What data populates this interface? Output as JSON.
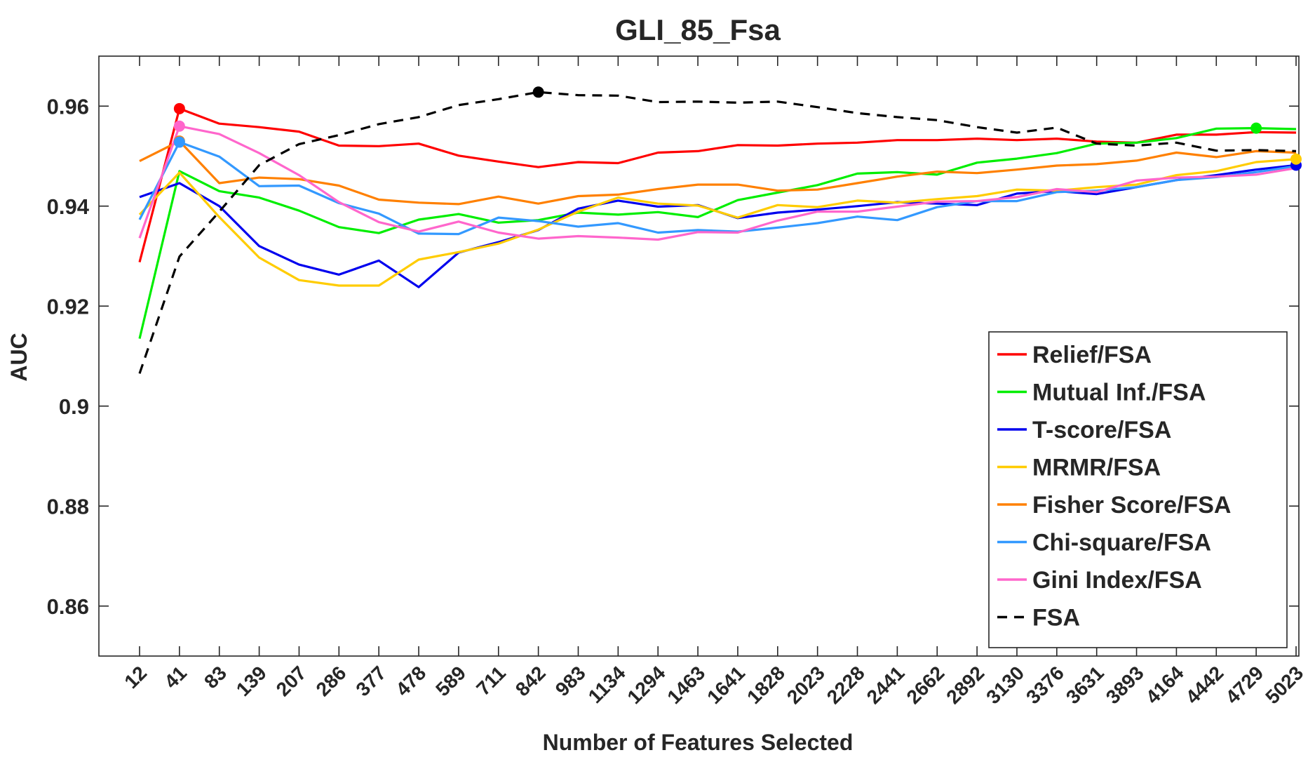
{
  "chart_data": {
    "type": "line",
    "title": "GLI_85_Fsa",
    "xlabel": "Number of Features Selected",
    "ylabel": "AUC",
    "ylim": [
      0.85,
      0.97
    ],
    "yticks": [
      0.86,
      0.88,
      0.9,
      0.92,
      0.94,
      0.96
    ],
    "ytick_labels": [
      "0.86",
      "0.88",
      "0.9",
      "0.92",
      "0.94",
      "0.96"
    ],
    "categories": [
      "12",
      "41",
      "83",
      "139",
      "207",
      "286",
      "377",
      "478",
      "589",
      "711",
      "842",
      "983",
      "1134",
      "1294",
      "1463",
      "1641",
      "1828",
      "2023",
      "2228",
      "2441",
      "2662",
      "2892",
      "3130",
      "3376",
      "3631",
      "3893",
      "4164",
      "4442",
      "4729",
      "5023"
    ],
    "grid": false,
    "legend_position": "bottom-right",
    "series": [
      {
        "name": "Relief/FSA",
        "color": "#ff0000",
        "dash": "solid",
        "values": [
          0.9288,
          0.9595,
          0.9565,
          0.9558,
          0.9549,
          0.9521,
          0.952,
          0.9525,
          0.9501,
          0.9489,
          0.9478,
          0.9488,
          0.9486,
          0.9507,
          0.951,
          0.9522,
          0.9521,
          0.9525,
          0.9527,
          0.9532,
          0.9532,
          0.9535,
          0.9532,
          0.9535,
          0.9529,
          0.9527,
          0.9543,
          0.9543,
          0.9548,
          0.9547
        ],
        "marker_index": 1
      },
      {
        "name": "Mutual Inf./FSA",
        "color": "#00ee00",
        "dash": "solid",
        "values": [
          0.9135,
          0.947,
          0.943,
          0.9417,
          0.9391,
          0.9358,
          0.9346,
          0.9373,
          0.9384,
          0.9367,
          0.9372,
          0.9387,
          0.9383,
          0.9388,
          0.9378,
          0.9412,
          0.9427,
          0.9442,
          0.9465,
          0.9468,
          0.9463,
          0.9487,
          0.9495,
          0.9506,
          0.9525,
          0.9527,
          0.9536,
          0.9555,
          0.9556,
          0.9554
        ],
        "marker_index": 28
      },
      {
        "name": "T-score/FSA",
        "color": "#0000ee",
        "dash": "solid",
        "values": [
          0.9418,
          0.9446,
          0.94,
          0.932,
          0.9283,
          0.9263,
          0.9291,
          0.9238,
          0.9307,
          0.9328,
          0.9352,
          0.9395,
          0.9411,
          0.9399,
          0.9402,
          0.9376,
          0.9387,
          0.9393,
          0.94,
          0.9408,
          0.9405,
          0.9402,
          0.9425,
          0.943,
          0.9424,
          0.9438,
          0.9452,
          0.9462,
          0.9473,
          0.9482
        ],
        "marker_index": 29
      },
      {
        "name": "MRMR/FSA",
        "color": "#ffcc00",
        "dash": "solid",
        "values": [
          0.9383,
          0.9467,
          0.9378,
          0.9297,
          0.9252,
          0.9241,
          0.9241,
          0.9293,
          0.9308,
          0.9325,
          0.9353,
          0.9389,
          0.9417,
          0.9405,
          0.9401,
          0.9377,
          0.9402,
          0.9398,
          0.9411,
          0.9407,
          0.9414,
          0.942,
          0.9433,
          0.9431,
          0.9438,
          0.9443,
          0.9462,
          0.947,
          0.9488,
          0.9494
        ],
        "marker_index": 29
      },
      {
        "name": "Fisher Score/FSA",
        "color": "#ff8000",
        "dash": "solid",
        "values": [
          0.949,
          0.953,
          0.9446,
          0.9457,
          0.9454,
          0.9441,
          0.9413,
          0.9407,
          0.9404,
          0.9419,
          0.9405,
          0.942,
          0.9423,
          0.9434,
          0.9443,
          0.9443,
          0.9431,
          0.9433,
          0.9446,
          0.9459,
          0.9469,
          0.9466,
          0.9473,
          0.9481,
          0.9484,
          0.9491,
          0.9507,
          0.9498,
          0.951,
          0.9507
        ],
        "marker_index": 1
      },
      {
        "name": "Chi-square/FSA",
        "color": "#3399ff",
        "dash": "solid",
        "values": [
          0.9373,
          0.9528,
          0.9499,
          0.944,
          0.9441,
          0.9406,
          0.9385,
          0.9345,
          0.9344,
          0.9377,
          0.937,
          0.9359,
          0.9366,
          0.9347,
          0.9352,
          0.9349,
          0.9357,
          0.9366,
          0.9379,
          0.9372,
          0.9398,
          0.941,
          0.941,
          0.9428,
          0.9431,
          0.9438,
          0.9452,
          0.9458,
          0.9468,
          0.948
        ],
        "marker_index": 1
      },
      {
        "name": "Gini Index/FSA",
        "color": "#ff66cc",
        "dash": "solid",
        "values": [
          0.9336,
          0.956,
          0.9544,
          0.9506,
          0.9462,
          0.9408,
          0.9368,
          0.9349,
          0.9369,
          0.9347,
          0.9335,
          0.934,
          0.9337,
          0.9333,
          0.9348,
          0.9347,
          0.9371,
          0.9389,
          0.9389,
          0.9399,
          0.9409,
          0.941,
          0.9418,
          0.9434,
          0.9428,
          0.9451,
          0.9457,
          0.9459,
          0.9463,
          0.9476
        ],
        "marker_index": 1
      },
      {
        "name": "FSA",
        "color": "#000000",
        "dash": "dashed",
        "values": [
          0.9065,
          0.9299,
          0.9389,
          0.9482,
          0.9524,
          0.9542,
          0.9564,
          0.9578,
          0.9602,
          0.9614,
          0.9628,
          0.9622,
          0.9621,
          0.9608,
          0.9609,
          0.9607,
          0.9609,
          0.9598,
          0.9586,
          0.9578,
          0.9572,
          0.9558,
          0.9547,
          0.9557,
          0.9525,
          0.9521,
          0.9527,
          0.9511,
          0.9512,
          0.951
        ],
        "marker_index": 10
      }
    ]
  }
}
